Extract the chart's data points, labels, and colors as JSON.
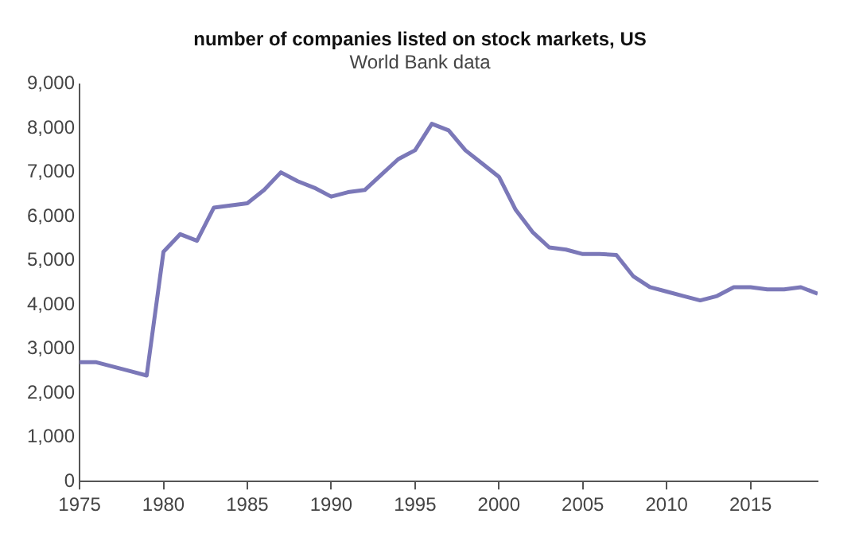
{
  "chart_data": {
    "type": "line",
    "title": "number of companies listed on stock markets, US",
    "subtitle": "World Bank data",
    "x": [
      1975,
      1976,
      1977,
      1978,
      1979,
      1980,
      1981,
      1982,
      1983,
      1984,
      1985,
      1986,
      1987,
      1988,
      1989,
      1990,
      1991,
      1992,
      1993,
      1994,
      1995,
      1996,
      1997,
      1998,
      1999,
      2000,
      2001,
      2002,
      2003,
      2004,
      2005,
      2006,
      2007,
      2008,
      2009,
      2010,
      2011,
      2012,
      2013,
      2014,
      2015,
      2016,
      2017,
      2018,
      2019
    ],
    "series": [
      {
        "color": "#7b78b8",
        "values": [
          2700,
          2700,
          2600,
          2500,
          2400,
          5200,
          5600,
          5450,
          6200,
          6250,
          6300,
          6600,
          7000,
          6800,
          6650,
          6450,
          6550,
          6600,
          6950,
          7300,
          7500,
          8100,
          7950,
          7500,
          7200,
          6900,
          6150,
          5650,
          5300,
          5250,
          5150,
          5150,
          5130,
          4650,
          4400,
          4300,
          4200,
          4100,
          4200,
          4400,
          4400,
          4350,
          4350,
          4400,
          4250
        ]
      }
    ],
    "xlim": [
      1975,
      2019
    ],
    "xticks": [
      1975,
      1980,
      1985,
      1990,
      1995,
      2000,
      2005,
      2010,
      2015
    ],
    "ylim": [
      0,
      9000
    ],
    "yticks": [
      0,
      {
        "value": 1000,
        "label": "1,000"
      },
      {
        "value": 2000,
        "label": "2,000"
      },
      {
        "value": 3000,
        "label": "3,000"
      },
      {
        "value": 4000,
        "label": "4,000"
      },
      {
        "value": 5000,
        "label": "5,000"
      },
      {
        "value": 6000,
        "label": "6,000"
      },
      {
        "value": 7000,
        "label": "7,000"
      },
      {
        "value": 8000,
        "label": "8,000"
      },
      {
        "value": 9000,
        "label": "9,000"
      }
    ],
    "grid": false,
    "legend": false,
    "marker": "none",
    "line_style": "solid"
  }
}
